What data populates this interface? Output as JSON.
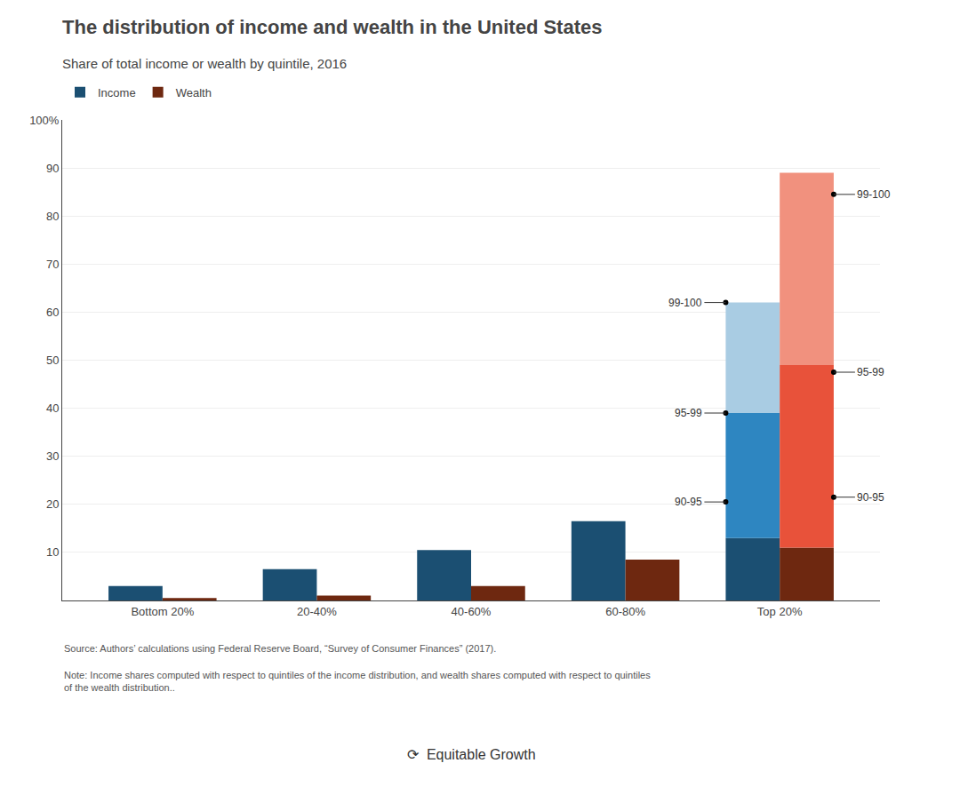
{
  "chart_data": {
    "type": "bar",
    "title": "The distribution of income and wealth in the United States",
    "subtitle": "Share of total income or wealth by quintile, 2016",
    "categories": [
      "Bottom 20%",
      "20-40%",
      "40-60%",
      "60-80%",
      "Top 20%"
    ],
    "series": [
      {
        "name": "Income",
        "color": "#1b4f72",
        "values": [
          3.0,
          6.5,
          10.5,
          16.5,
          null
        ],
        "segments": {
          "category": "Top 20%",
          "values": [
            13.0,
            26.0,
            23.0
          ],
          "colors": [
            "#1b4f72",
            "#2e86c1",
            "#a9cce3"
          ]
        },
        "annotations": [
          {
            "text": "90-95",
            "y": 20.5
          },
          {
            "text": "95-99",
            "y": 39.0
          },
          {
            "text": "99-100",
            "y": 62.0
          }
        ]
      },
      {
        "name": "Wealth",
        "color": "#6e2810",
        "values": [
          0.5,
          1.0,
          3.0,
          8.5,
          null
        ],
        "segments": {
          "category": "Top 20%",
          "values": [
            11.0,
            38.0,
            40.0
          ],
          "colors": [
            "#6e2810",
            "#e8523a",
            "#f1917e"
          ]
        },
        "annotations": [
          {
            "text": "90-95",
            "y": 21.5
          },
          {
            "text": "95-99",
            "y": 47.5
          },
          {
            "text": "99-100",
            "y": 84.5
          }
        ]
      }
    ],
    "stacked": true,
    "ylim": [
      0,
      100
    ],
    "yticks": [
      10,
      20,
      30,
      40,
      50,
      60,
      70,
      80,
      90,
      {
        "value": 100,
        "label": "100%"
      }
    ],
    "grid": true,
    "legend": "top left",
    "source": "Source: Authors’ calculations using Federal Reserve Board, “Survey of Consumer Finances” (2017).",
    "note": "Note: Income shares computed with respect to quintiles of the income distribution, and wealth shares computed with respect to quintiles\nof the wealth distribution..",
    "logo": "⟳  Equitable Growth"
  }
}
